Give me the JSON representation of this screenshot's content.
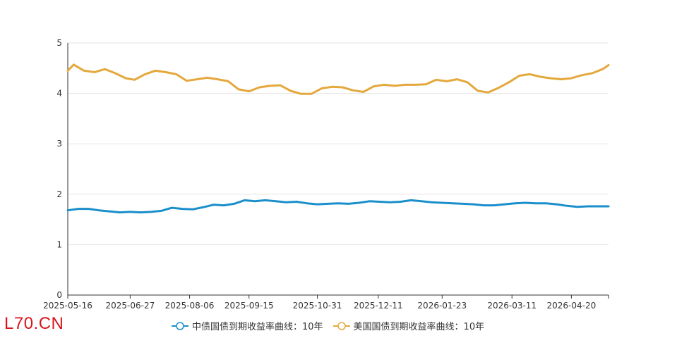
{
  "chart_data": {
    "type": "line",
    "x_ticks": [
      "2025-05-16",
      "2025-06-27",
      "2025-08-06",
      "2025-09-15",
      "2025-10-31",
      "2025-12-11",
      "2026-01-23",
      "2026-03-11",
      "2026-04-20"
    ],
    "ylim": [
      0,
      5
    ],
    "y_ticks": [
      "0",
      "1",
      "2",
      "3",
      "4",
      "5"
    ],
    "grid": true,
    "legend_position": "bottom",
    "series": [
      {
        "name": "中债国债到期收益率曲线：10年",
        "color": "#1a8fcb",
        "points": [
          [
            "2025-05-16",
            1.68
          ],
          [
            "2025-05-23",
            1.71
          ],
          [
            "2025-05-30",
            1.71
          ],
          [
            "2025-06-06",
            1.68
          ],
          [
            "2025-06-13",
            1.66
          ],
          [
            "2025-06-20",
            1.64
          ],
          [
            "2025-06-27",
            1.65
          ],
          [
            "2025-07-04",
            1.64
          ],
          [
            "2025-07-11",
            1.65
          ],
          [
            "2025-07-18",
            1.67
          ],
          [
            "2025-07-25",
            1.73
          ],
          [
            "2025-08-01",
            1.71
          ],
          [
            "2025-08-08",
            1.7
          ],
          [
            "2025-08-15",
            1.74
          ],
          [
            "2025-08-22",
            1.79
          ],
          [
            "2025-08-29",
            1.78
          ],
          [
            "2025-09-05",
            1.81
          ],
          [
            "2025-09-12",
            1.88
          ],
          [
            "2025-09-19",
            1.86
          ],
          [
            "2025-09-26",
            1.88
          ],
          [
            "2025-10-03",
            1.86
          ],
          [
            "2025-10-10",
            1.84
          ],
          [
            "2025-10-17",
            1.85
          ],
          [
            "2025-10-24",
            1.82
          ],
          [
            "2025-10-31",
            1.8
          ],
          [
            "2025-11-07",
            1.81
          ],
          [
            "2025-11-14",
            1.82
          ],
          [
            "2025-11-21",
            1.81
          ],
          [
            "2025-11-28",
            1.83
          ],
          [
            "2025-12-05",
            1.86
          ],
          [
            "2025-12-12",
            1.85
          ],
          [
            "2025-12-19",
            1.84
          ],
          [
            "2025-12-26",
            1.85
          ],
          [
            "2026-01-02",
            1.88
          ],
          [
            "2026-01-09",
            1.86
          ],
          [
            "2026-01-16",
            1.84
          ],
          [
            "2026-01-23",
            1.83
          ],
          [
            "2026-01-30",
            1.82
          ],
          [
            "2026-02-06",
            1.81
          ],
          [
            "2026-02-13",
            1.8
          ],
          [
            "2026-02-20",
            1.78
          ],
          [
            "2026-02-27",
            1.78
          ],
          [
            "2026-03-06",
            1.8
          ],
          [
            "2026-03-13",
            1.82
          ],
          [
            "2026-03-20",
            1.83
          ],
          [
            "2026-03-27",
            1.82
          ],
          [
            "2026-04-03",
            1.82
          ],
          [
            "2026-04-10",
            1.8
          ],
          [
            "2026-04-17",
            1.77
          ],
          [
            "2026-04-24",
            1.75
          ],
          [
            "2026-05-01",
            1.76
          ],
          [
            "2026-05-08",
            1.76
          ],
          [
            "2026-05-15",
            1.76
          ]
        ]
      },
      {
        "name": "美国国债到期收益率曲线：10年",
        "color": "#e4a83c",
        "points": [
          [
            "2025-05-16",
            4.45
          ],
          [
            "2025-05-20",
            4.57
          ],
          [
            "2025-05-27",
            4.45
          ],
          [
            "2025-06-03",
            4.42
          ],
          [
            "2025-06-10",
            4.48
          ],
          [
            "2025-06-17",
            4.4
          ],
          [
            "2025-06-24",
            4.3
          ],
          [
            "2025-06-30",
            4.27
          ],
          [
            "2025-07-07",
            4.38
          ],
          [
            "2025-07-14",
            4.45
          ],
          [
            "2025-07-21",
            4.42
          ],
          [
            "2025-07-28",
            4.38
          ],
          [
            "2025-08-04",
            4.25
          ],
          [
            "2025-08-11",
            4.28
          ],
          [
            "2025-08-18",
            4.31
          ],
          [
            "2025-08-25",
            4.28
          ],
          [
            "2025-09-01",
            4.24
          ],
          [
            "2025-09-08",
            4.08
          ],
          [
            "2025-09-15",
            4.04
          ],
          [
            "2025-09-22",
            4.12
          ],
          [
            "2025-09-29",
            4.15
          ],
          [
            "2025-10-06",
            4.16
          ],
          [
            "2025-10-13",
            4.05
          ],
          [
            "2025-10-20",
            3.99
          ],
          [
            "2025-10-27",
            3.99
          ],
          [
            "2025-11-03",
            4.1
          ],
          [
            "2025-11-10",
            4.13
          ],
          [
            "2025-11-17",
            4.12
          ],
          [
            "2025-11-24",
            4.06
          ],
          [
            "2025-12-01",
            4.03
          ],
          [
            "2025-12-08",
            4.14
          ],
          [
            "2025-12-15",
            4.17
          ],
          [
            "2025-12-22",
            4.15
          ],
          [
            "2025-12-29",
            4.17
          ],
          [
            "2026-01-05",
            4.17
          ],
          [
            "2026-01-12",
            4.18
          ],
          [
            "2026-01-19",
            4.27
          ],
          [
            "2026-01-26",
            4.24
          ],
          [
            "2026-02-02",
            4.28
          ],
          [
            "2026-02-09",
            4.22
          ],
          [
            "2026-02-16",
            4.05
          ],
          [
            "2026-02-23",
            4.02
          ],
          [
            "2026-03-02",
            4.11
          ],
          [
            "2026-03-09",
            4.22
          ],
          [
            "2026-03-16",
            4.35
          ],
          [
            "2026-03-23",
            4.38
          ],
          [
            "2026-03-30",
            4.33
          ],
          [
            "2026-04-06",
            4.3
          ],
          [
            "2026-04-13",
            4.28
          ],
          [
            "2026-04-20",
            4.3
          ],
          [
            "2026-04-27",
            4.36
          ],
          [
            "2026-05-04",
            4.4
          ],
          [
            "2026-05-11",
            4.48
          ],
          [
            "2026-05-15",
            4.56
          ]
        ]
      }
    ]
  },
  "watermark": "L70.CN"
}
